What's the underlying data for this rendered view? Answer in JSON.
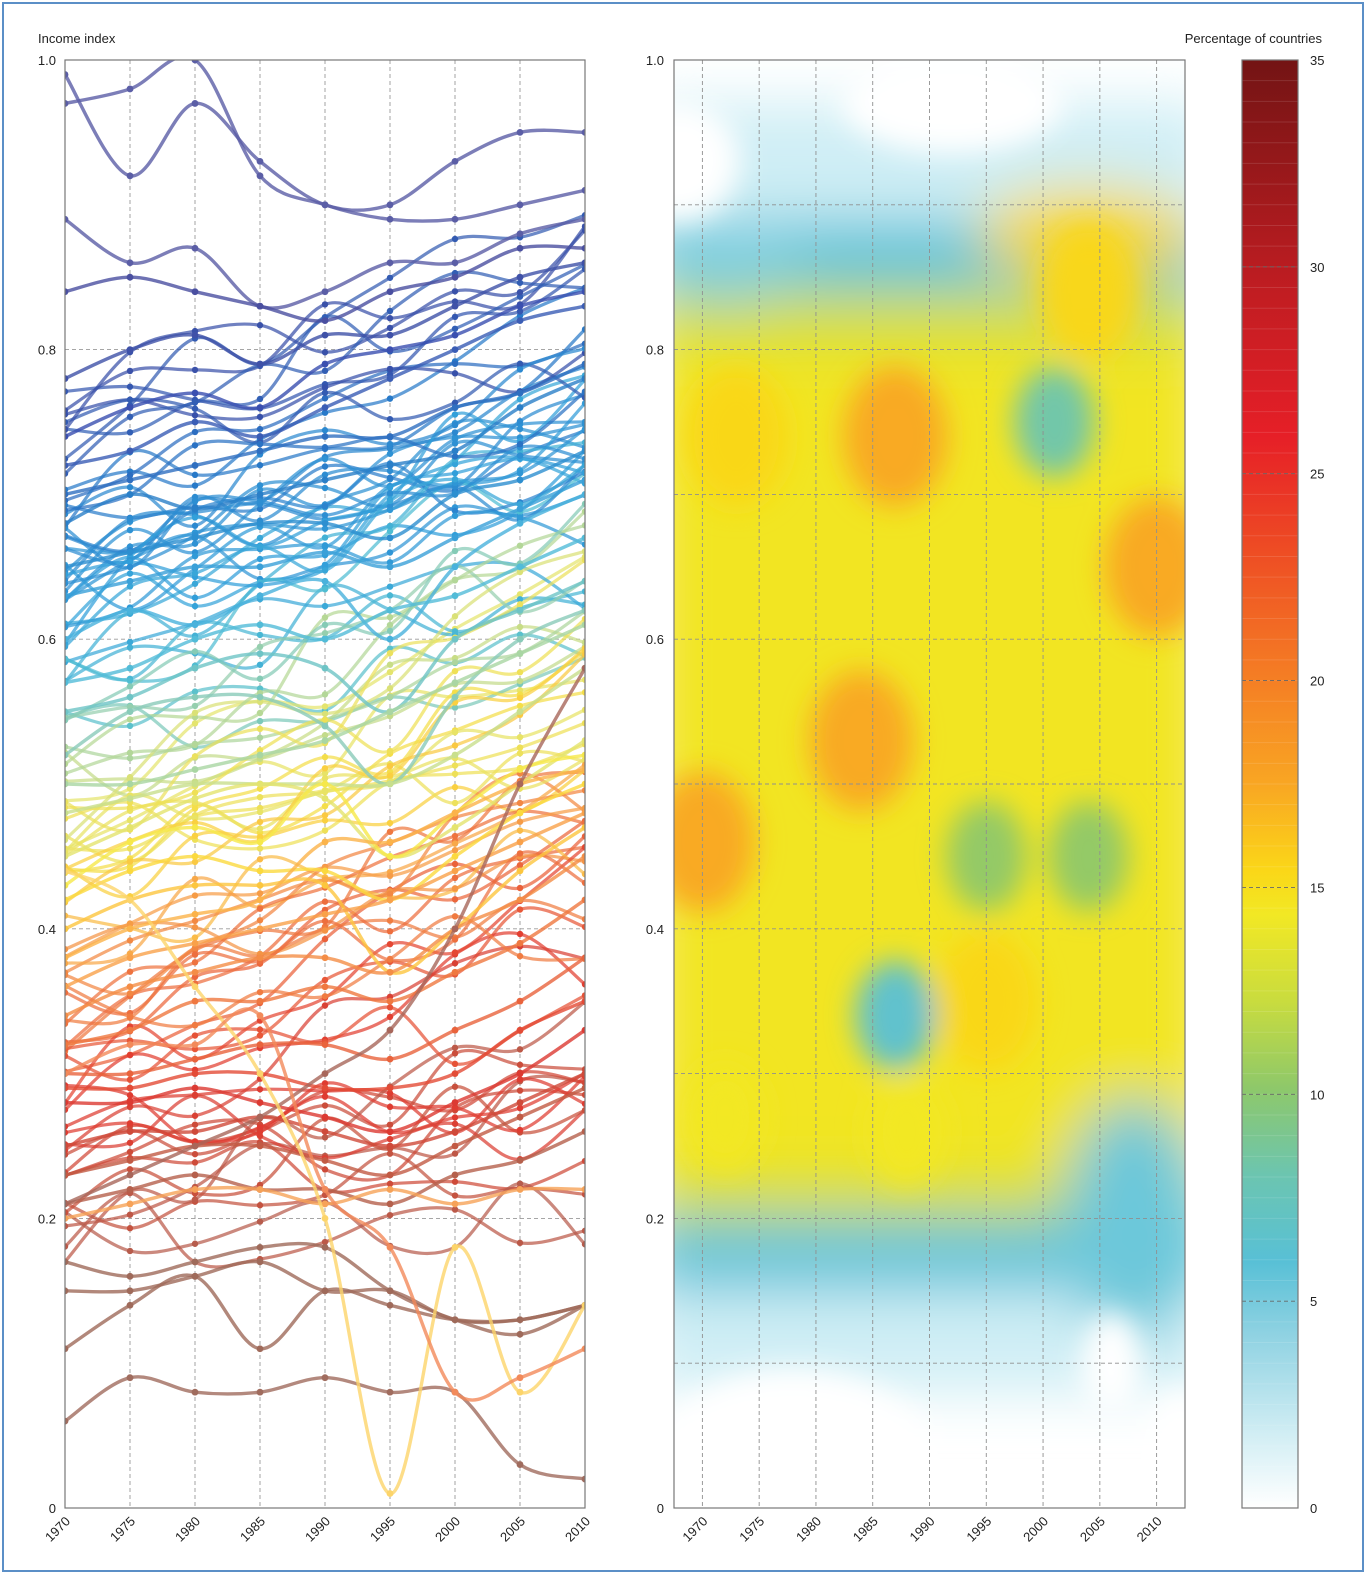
{
  "chart_data": [
    {
      "type": "line",
      "ylabel": "Income index",
      "x": [
        1970,
        1975,
        1980,
        1985,
        1990,
        1995,
        2000,
        2005,
        2010
      ],
      "xlim": [
        1970,
        2010
      ],
      "ylim": [
        0,
        1
      ],
      "yticks": [
        "0",
        "0.2",
        "0.4",
        "0.6",
        "0.8",
        "1.0"
      ],
      "xticks": [
        "1970",
        "1975",
        "1980",
        "1985",
        "1990",
        "1995",
        "2000",
        "2005",
        "2010"
      ],
      "grid": true,
      "series_count": 130,
      "representative_series": [
        {
          "values": [
            0.99,
            0.92,
            0.97,
            0.93,
            0.9,
            0.9,
            0.93,
            0.95,
            0.95
          ],
          "color": "#5b5ea6"
        },
        {
          "values": [
            0.97,
            0.98,
            1.0,
            0.92,
            0.9,
            0.89,
            0.89,
            0.9,
            0.91
          ],
          "color": "#5b5ea6"
        },
        {
          "values": [
            0.89,
            0.86,
            0.87,
            0.83,
            0.84,
            0.86,
            0.86,
            0.88,
            0.89
          ],
          "color": "#5b5ea6"
        },
        {
          "values": [
            0.84,
            0.85,
            0.84,
            0.83,
            0.82,
            0.84,
            0.85,
            0.87,
            0.87
          ],
          "color": "#4a4fa0"
        },
        {
          "values": [
            0.78,
            0.8,
            0.81,
            0.79,
            0.81,
            0.81,
            0.83,
            0.85,
            0.86
          ],
          "color": "#3f51a8"
        },
        {
          "values": [
            0.74,
            0.76,
            0.77,
            0.76,
            0.79,
            0.8,
            0.81,
            0.83,
            0.84
          ],
          "color": "#3a4fb0"
        },
        {
          "values": [
            0.72,
            0.73,
            0.75,
            0.74,
            0.76,
            0.78,
            0.8,
            0.82,
            0.83
          ],
          "color": "#3a5db5"
        },
        {
          "values": [
            0.7,
            0.71,
            0.72,
            0.73,
            0.74,
            0.74,
            0.76,
            0.77,
            0.79
          ],
          "color": "#2f6fc0"
        },
        {
          "values": [
            0.68,
            0.7,
            0.69,
            0.7,
            0.71,
            0.72,
            0.73,
            0.76,
            0.78
          ],
          "color": "#2a7fc8"
        },
        {
          "values": [
            0.65,
            0.66,
            0.67,
            0.68,
            0.68,
            0.67,
            0.7,
            0.71,
            0.73
          ],
          "color": "#2d8fd0"
        },
        {
          "values": [
            0.63,
            0.64,
            0.65,
            0.65,
            0.66,
            0.65,
            0.67,
            0.69,
            0.71
          ],
          "color": "#3aa0d8"
        },
        {
          "values": [
            0.6,
            0.62,
            0.61,
            0.63,
            0.64,
            0.6,
            0.65,
            0.68,
            0.7
          ],
          "color": "#49b2dc"
        },
        {
          "values": [
            0.57,
            0.58,
            0.6,
            0.61,
            0.6,
            0.62,
            0.63,
            0.65,
            0.67
          ],
          "color": "#52bcd8"
        },
        {
          "values": [
            0.55,
            0.56,
            0.58,
            0.59,
            0.58,
            0.55,
            0.6,
            0.62,
            0.64
          ],
          "color": "#6ec4c6"
        },
        {
          "values": [
            0.52,
            0.55,
            0.56,
            0.56,
            0.54,
            0.5,
            0.56,
            0.6,
            0.62
          ],
          "color": "#89cbb9"
        },
        {
          "values": [
            0.5,
            0.5,
            0.51,
            0.52,
            0.53,
            0.55,
            0.57,
            0.59,
            0.61
          ],
          "color": "#a9d6a3"
        },
        {
          "values": [
            0.48,
            0.49,
            0.5,
            0.5,
            0.5,
            0.5,
            0.52,
            0.55,
            0.58
          ],
          "color": "#c8df8c"
        },
        {
          "values": [
            0.45,
            0.47,
            0.49,
            0.5,
            0.49,
            0.45,
            0.47,
            0.5,
            0.53
          ],
          "color": "#e4e46e"
        },
        {
          "values": [
            0.43,
            0.46,
            0.47,
            0.46,
            0.5,
            0.45,
            0.48,
            0.51,
            0.52
          ],
          "color": "#f6e84a"
        },
        {
          "values": [
            0.42,
            0.44,
            0.45,
            0.44,
            0.44,
            0.42,
            0.45,
            0.48,
            0.5
          ],
          "color": "#fbd93e"
        },
        {
          "values": [
            0.4,
            0.42,
            0.43,
            0.43,
            0.43,
            0.37,
            0.4,
            0.44,
            0.47
          ],
          "color": "#fcc63e"
        },
        {
          "values": [
            0.38,
            0.4,
            0.41,
            0.42,
            0.46,
            0.46,
            0.48,
            0.5,
            0.51
          ],
          "color": "#fbb34a"
        },
        {
          "values": [
            0.36,
            0.38,
            0.39,
            0.4,
            0.41,
            0.42,
            0.44,
            0.46,
            0.48
          ],
          "color": "#f9a14a"
        },
        {
          "values": [
            0.34,
            0.36,
            0.37,
            0.38,
            0.38,
            0.37,
            0.4,
            0.42,
            0.45
          ],
          "color": "#f48d46"
        },
        {
          "values": [
            0.32,
            0.33,
            0.35,
            0.35,
            0.36,
            0.35,
            0.37,
            0.39,
            0.42
          ],
          "color": "#ef7840"
        },
        {
          "values": [
            0.3,
            0.3,
            0.31,
            0.32,
            0.32,
            0.31,
            0.33,
            0.35,
            0.38
          ],
          "color": "#e9633c"
        },
        {
          "values": [
            0.29,
            0.29,
            0.3,
            0.3,
            0.29,
            0.29,
            0.3,
            0.33,
            0.35
          ],
          "color": "#e34b36"
        },
        {
          "values": [
            0.28,
            0.28,
            0.29,
            0.28,
            0.27,
            0.26,
            0.28,
            0.3,
            0.33
          ],
          "color": "#dc3a32"
        },
        {
          "values": [
            0.25,
            0.26,
            0.26,
            0.27,
            0.26,
            0.25,
            0.26,
            0.28,
            0.3
          ],
          "color": "#cf4a3a"
        },
        {
          "values": [
            0.23,
            0.24,
            0.25,
            0.25,
            0.24,
            0.23,
            0.25,
            0.27,
            0.29
          ],
          "color": "#c25a44"
        },
        {
          "values": [
            0.21,
            0.22,
            0.23,
            0.22,
            0.22,
            0.21,
            0.23,
            0.24,
            0.26
          ],
          "color": "#b5604c"
        },
        {
          "values": [
            0.2,
            0.21,
            0.22,
            0.22,
            0.21,
            0.22,
            0.21,
            0.22,
            0.22
          ],
          "color": "#f6a258"
        },
        {
          "values": [
            0.21,
            0.23,
            0.25,
            0.27,
            0.3,
            0.33,
            0.4,
            0.5,
            0.58
          ],
          "color": "#a8665a"
        },
        {
          "values": [
            0.17,
            0.16,
            0.17,
            0.18,
            0.18,
            0.15,
            0.13,
            0.12,
            0.14
          ],
          "color": "#9f6a5a"
        },
        {
          "values": [
            0.15,
            0.15,
            0.16,
            0.17,
            0.15,
            0.15,
            0.13,
            0.13,
            0.14
          ],
          "color": "#9f6a5a"
        },
        {
          "values": [
            0.11,
            0.14,
            0.16,
            0.11,
            0.15,
            0.14,
            0.13,
            0.13,
            0.14
          ],
          "color": "#9f6a5a"
        },
        {
          "values": [
            0.06,
            0.09,
            0.08,
            0.08,
            0.09,
            0.08,
            0.08,
            0.03,
            0.02
          ],
          "color": "#a06c5e"
        },
        {
          "values": [
            0.44,
            0.42,
            0.36,
            0.3,
            0.2,
            0.01,
            0.18,
            0.08,
            0.14
          ],
          "color": "#fcd46a"
        },
        {
          "values": [
            0.3,
            0.32,
            0.32,
            0.34,
            0.22,
            0.18,
            0.08,
            0.09,
            0.11
          ],
          "color": "#f28a5a"
        }
      ]
    },
    {
      "type": "heatmap",
      "x": [
        1970,
        1975,
        1980,
        1985,
        1990,
        1995,
        2000,
        2005,
        2010
      ],
      "xlim": [
        1967.5,
        2012.5
      ],
      "ylim": [
        0,
        1
      ],
      "yticks": [
        "0",
        "0.2",
        "0.4",
        "0.6",
        "0.8",
        "1.0"
      ],
      "xticks": [
        "1970",
        "1975",
        "1980",
        "1985",
        "1990",
        "1995",
        "2000",
        "2005",
        "2010"
      ],
      "grid": true,
      "colorbar": {
        "label": "Percentage of countries",
        "range": [
          0,
          35
        ],
        "ticks": [
          "0",
          "5",
          "10",
          "15",
          "20",
          "25",
          "30",
          "35"
        ]
      },
      "hotspots": [
        {
          "x": 1970,
          "y": 0.46,
          "value": 20
        },
        {
          "x": 1973,
          "y": 0.74,
          "value": 17
        },
        {
          "x": 1987,
          "y": 0.74,
          "value": 20
        },
        {
          "x": 2010,
          "y": 0.65,
          "value": 19
        },
        {
          "x": 2004,
          "y": 0.84,
          "value": 17
        },
        {
          "x": 1984,
          "y": 0.53,
          "value": 18
        },
        {
          "x": 1995,
          "y": 0.35,
          "value": 17
        },
        {
          "x": 1972,
          "y": 0.27,
          "value": 15
        },
        {
          "x": 1988,
          "y": 0.26,
          "value": 15
        },
        {
          "x": 1987,
          "y": 0.34,
          "value": 7
        },
        {
          "x": 2001,
          "y": 0.75,
          "value": 9
        },
        {
          "x": 1995,
          "y": 0.45,
          "value": 11
        },
        {
          "x": 2004,
          "y": 0.45,
          "value": 11
        }
      ]
    }
  ]
}
